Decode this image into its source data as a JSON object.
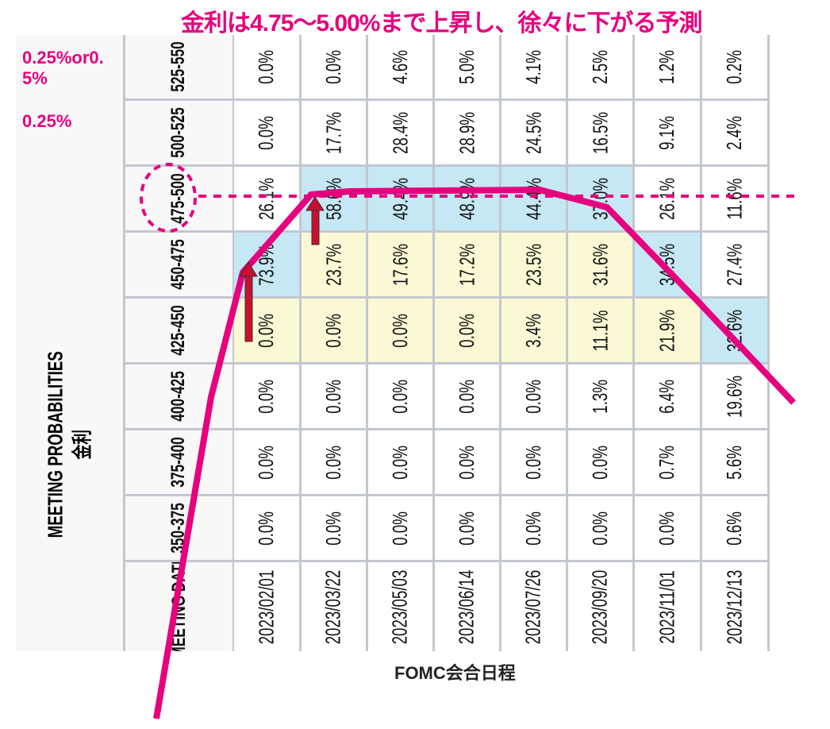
{
  "table": {
    "row_header_title": "MEETING PROBABILITIES",
    "row_header_subtitle": "金利",
    "meeting_date_label": "MEETING DATE",
    "dates": [
      "2023/02/01",
      "2023/03/22",
      "2023/05/03",
      "2023/06/14",
      "2023/07/26",
      "2023/09/20",
      "2023/11/01",
      "2023/12/13"
    ],
    "rows": [
      {
        "range": "525-550",
        "values": [
          "0.0%",
          "0.0%",
          "4.6%",
          "5.0%",
          "4.1%",
          "2.5%",
          "1.2%",
          "0.2%"
        ],
        "highlight": [
          "",
          "",
          "",
          "",
          "",
          "",
          "",
          ""
        ]
      },
      {
        "range": "500-525",
        "values": [
          "0.0%",
          "17.7%",
          "28.4%",
          "28.9%",
          "24.5%",
          "16.5%",
          "9.1%",
          "2.4%"
        ],
        "highlight": [
          "",
          "",
          "",
          "",
          "",
          "",
          "",
          ""
        ]
      },
      {
        "range": "475-500",
        "values": [
          "26.1%",
          "58.6%",
          "49.4%",
          "48.9%",
          "44.4%",
          "37.0%",
          "26.1%",
          "11.6%"
        ],
        "highlight": [
          "",
          "blue",
          "blue",
          "blue",
          "blue",
          "blue",
          "",
          ""
        ]
      },
      {
        "range": "450-475",
        "values": [
          "73.9%",
          "23.7%",
          "17.6%",
          "17.2%",
          "23.5%",
          "31.6%",
          "34.5%",
          "27.4%"
        ],
        "highlight": [
          "blue",
          "yellow",
          "yellow",
          "yellow",
          "yellow",
          "yellow",
          "blue",
          ""
        ]
      },
      {
        "range": "425-450",
        "values": [
          "0.0%",
          "0.0%",
          "0.0%",
          "0.0%",
          "3.4%",
          "11.1%",
          "21.9%",
          "32.6%"
        ],
        "highlight": [
          "yellow",
          "yellow",
          "yellow",
          "yellow",
          "yellow",
          "yellow",
          "yellow",
          "blue"
        ]
      },
      {
        "range": "400-425",
        "values": [
          "0.0%",
          "0.0%",
          "0.0%",
          "0.0%",
          "0.0%",
          "1.3%",
          "6.4%",
          "19.6%"
        ],
        "highlight": [
          "",
          "",
          "",
          "",
          "",
          "",
          "",
          ""
        ]
      },
      {
        "range": "375-400",
        "values": [
          "0.0%",
          "0.0%",
          "0.0%",
          "0.0%",
          "0.0%",
          "0.0%",
          "0.7%",
          "5.6%"
        ],
        "highlight": [
          "",
          "",
          "",
          "",
          "",
          "",
          "",
          ""
        ]
      },
      {
        "range": "350-375",
        "values": [
          "0.0%",
          "0.0%",
          "0.0%",
          "0.0%",
          "0.0%",
          "0.0%",
          "0.0%",
          "0.6%"
        ],
        "highlight": [
          "",
          "",
          "",
          "",
          "",
          "",
          "",
          ""
        ]
      }
    ]
  },
  "annotations": {
    "title": "金利は4.75～5.00%まで上昇し、徐々に下がる予測",
    "step_march": "0.25%",
    "step_feb": "0.25%or0.5%",
    "x_axis_label": "FOMC会合日程",
    "highlighted_range": "475-500"
  },
  "colors": {
    "accent": "#e6007e",
    "arrow": "#c8102e",
    "blue_cell": "#c6e7f4",
    "yellow_cell": "#fbf8d5",
    "grid": "#c3c7d0"
  }
}
